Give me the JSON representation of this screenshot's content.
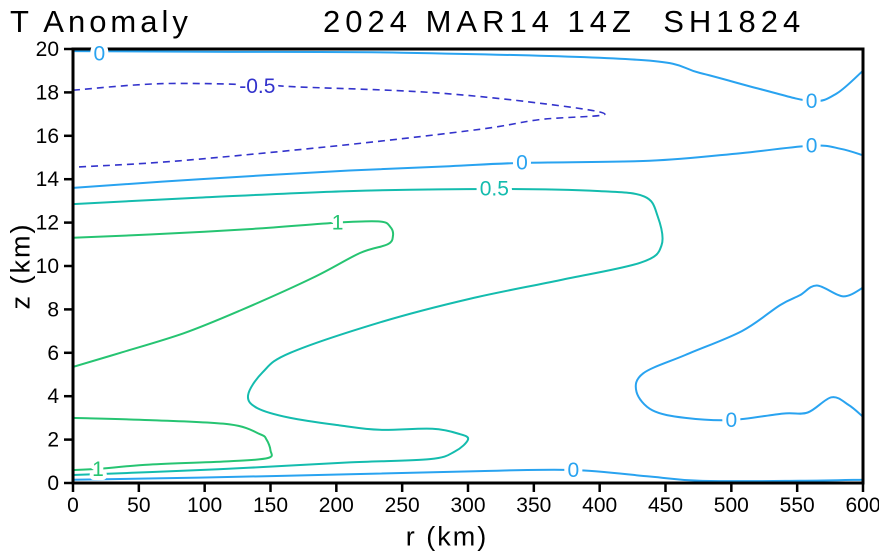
{
  "title": {
    "left": "T Anomaly",
    "right": "2024 MAR14 14Z  SH1824"
  },
  "chart_data": {
    "type": "contour",
    "title": "T Anomaly 2024 MAR14 14Z SH1824",
    "xlabel": "r (km)",
    "ylabel": "z (km)",
    "xlim": [
      0,
      600
    ],
    "ylim": [
      0,
      20
    ],
    "x_ticks": [
      0,
      50,
      100,
      150,
      200,
      250,
      300,
      350,
      400,
      450,
      500,
      550,
      600
    ],
    "y_ticks": [
      0,
      2,
      4,
      6,
      8,
      10,
      12,
      14,
      16,
      18,
      20
    ],
    "grid": false,
    "legend": "none",
    "axis_color": "#000000",
    "levels": [
      {
        "level": -0.5,
        "label_text": "-0.5",
        "color": "#3333cc",
        "style": "dashed",
        "paths": [
          [
            [
              0,
              18.1
            ],
            [
              66,
              18.4
            ],
            [
              140,
              18.35
            ],
            [
              172,
              18.25
            ],
            [
              271,
              18.0
            ],
            [
              355,
              17.5
            ],
            [
              404,
              17.0
            ],
            [
              355,
              16.75
            ],
            [
              309,
              16.3
            ],
            [
              210,
              15.6
            ],
            [
              81,
              14.85
            ],
            [
              0,
              14.55
            ]
          ]
        ],
        "labels": [
          {
            "r": 140,
            "z": 18.3
          }
        ]
      },
      {
        "level": 0,
        "label_text": "0",
        "color": "#29a3f0",
        "style": "solid",
        "paths": [
          [
            [
              0,
              19.9
            ],
            [
              100,
              19.87
            ],
            [
              250,
              19.83
            ],
            [
              430,
              19.5
            ],
            [
              476,
              18.9
            ],
            [
              522,
              18.15
            ],
            [
              561,
              17.6
            ],
            [
              580,
              17.95
            ],
            [
              600,
              19.0
            ]
          ],
          [
            [
              0,
              13.6
            ],
            [
              96,
              14.0
            ],
            [
              210,
              14.4
            ],
            [
              286,
              14.6
            ],
            [
              341,
              14.75
            ],
            [
              438,
              14.85
            ],
            [
              507,
              15.2
            ],
            [
              561,
              15.55
            ],
            [
              583,
              15.4
            ],
            [
              600,
              15.1
            ]
          ],
          [
            [
              600,
              9.0
            ],
            [
              585,
              8.6
            ],
            [
              565,
              9.1
            ],
            [
              552,
              8.65
            ],
            [
              537,
              8.2
            ],
            [
              508,
              7.0
            ],
            [
              465,
              5.9
            ],
            [
              433,
              5.05
            ],
            [
              428,
              4.2
            ],
            [
              440,
              3.35
            ],
            [
              465,
              3.0
            ],
            [
              500,
              2.9
            ],
            [
              539,
              3.2
            ],
            [
              558,
              3.25
            ],
            [
              576,
              3.95
            ],
            [
              589,
              3.6
            ],
            [
              600,
              3.05
            ]
          ],
          [
            [
              0,
              0.15
            ],
            [
              96,
              0.25
            ],
            [
              210,
              0.4
            ],
            [
              309,
              0.55
            ],
            [
              380,
              0.6
            ],
            [
              438,
              0.3
            ],
            [
              476,
              0.1
            ],
            [
              552,
              0.1
            ],
            [
              600,
              0.15
            ]
          ]
        ],
        "labels": [
          {
            "r": 20,
            "z": 19.8
          },
          {
            "r": 341,
            "z": 14.76
          },
          {
            "r": 561,
            "z": 17.6
          },
          {
            "r": 561,
            "z": 15.55
          },
          {
            "r": 500,
            "z": 2.9
          },
          {
            "r": 380,
            "z": 0.6
          }
        ]
      },
      {
        "level": 0.5,
        "label_text": "0.5",
        "color": "#14bcae",
        "style": "solid",
        "paths": [
          [
            [
              0,
              12.85
            ],
            [
              96,
              13.15
            ],
            [
              210,
              13.45
            ],
            [
              320,
              13.55
            ],
            [
              400,
              13.45
            ],
            [
              434,
              13.2
            ],
            [
              444,
              12.3
            ],
            [
              447,
              10.95
            ],
            [
              431,
              10.15
            ],
            [
              370,
              9.35
            ],
            [
              302,
              8.5
            ],
            [
              233,
              7.4
            ],
            [
              165,
              6.0
            ],
            [
              144,
              5.1
            ],
            [
              133,
              4.05
            ],
            [
              140,
              3.45
            ],
            [
              165,
              3.0
            ],
            [
              203,
              2.65
            ],
            [
              233,
              2.45
            ],
            [
              273,
              2.5
            ],
            [
              294,
              2.25
            ],
            [
              300,
              2.0
            ],
            [
              290,
              1.45
            ],
            [
              271,
              1.1
            ],
            [
              210,
              0.95
            ],
            [
              133,
              0.7
            ],
            [
              58,
              0.5
            ],
            [
              0,
              0.37
            ]
          ]
        ],
        "labels": [
          {
            "r": 320,
            "z": 13.56
          }
        ]
      },
      {
        "level": 1,
        "label_text": "1",
        "color": "#26c472",
        "style": "solid",
        "paths": [
          [
            [
              0,
              11.3
            ],
            [
              58,
              11.45
            ],
            [
              134,
              11.7
            ],
            [
              201,
              12.0
            ],
            [
              233,
              12.05
            ],
            [
              241,
              11.8
            ],
            [
              243,
              11.4
            ],
            [
              239,
              11.0
            ],
            [
              218,
              10.6
            ],
            [
              182,
              9.45
            ],
            [
              127,
              7.95
            ],
            [
              84,
              6.9
            ],
            [
              36,
              6.0
            ],
            [
              0,
              5.35
            ]
          ],
          [
            [
              0,
              3.0
            ],
            [
              58,
              2.9
            ],
            [
              119,
              2.7
            ],
            [
              142,
              2.25
            ],
            [
              147,
              2.0
            ],
            [
              150,
              1.5
            ],
            [
              148,
              1.15
            ],
            [
              119,
              1.0
            ],
            [
              58,
              0.85
            ],
            [
              19,
              0.65
            ],
            [
              0,
              0.6
            ]
          ]
        ],
        "labels": [
          {
            "r": 201,
            "z": 12.0
          },
          {
            "r": 19,
            "z": 0.64
          }
        ]
      }
    ]
  }
}
